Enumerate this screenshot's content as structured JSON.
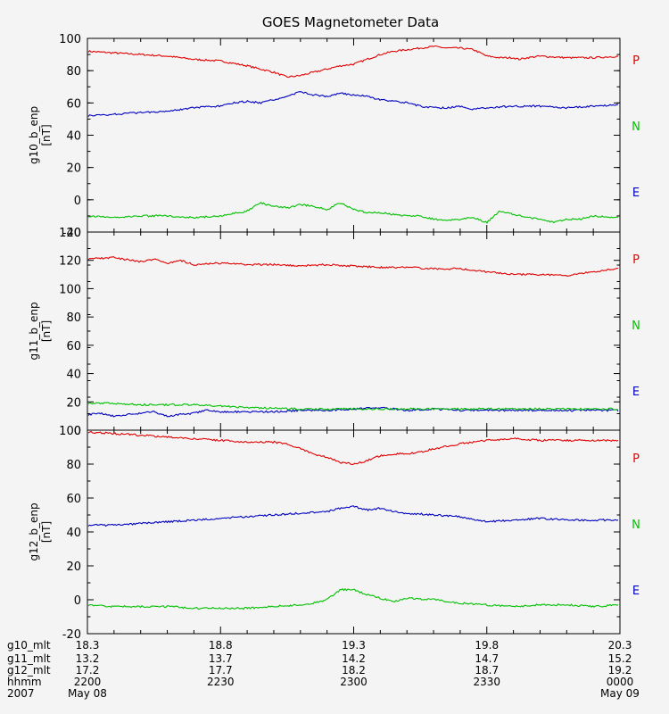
{
  "chart_data": {
    "type": "line",
    "title": "GOES Magnetometer Data",
    "x_ticks": [
      0,
      0.5,
      1.0,
      1.5,
      2.0
    ],
    "colors": {
      "P": "#e00000",
      "N": "#00c000",
      "E": "#0000c0"
    },
    "legend": [
      {
        "key": "P",
        "label": "P",
        "color": "#e00000"
      },
      {
        "key": "N",
        "label": "N",
        "color": "#00c000"
      },
      {
        "key": "E",
        "label": "E",
        "color": "#0000c0"
      }
    ],
    "panels": [
      {
        "ylabel": "g10_b_enp",
        "yunit": "[nT]",
        "ylim": [
          -20,
          100
        ],
        "yticks": [
          -20,
          0,
          20,
          40,
          60,
          80,
          100
        ],
        "series": [
          {
            "name": "P",
            "color": "#e00000",
            "x": [
              0,
              0.1,
              0.2,
              0.3,
              0.4,
              0.5,
              0.6,
              0.7,
              0.75,
              0.8,
              0.85,
              0.9,
              0.95,
              1.0,
              1.05,
              1.1,
              1.15,
              1.2,
              1.25,
              1.3,
              1.35,
              1.4,
              1.45,
              1.5,
              1.55,
              1.6,
              1.62,
              1.65,
              1.7,
              1.8,
              1.9,
              2.0
            ],
            "values": [
              92,
              91,
              90,
              89,
              87,
              86,
              83,
              79,
              76,
              77,
              79,
              81,
              83,
              84,
              87,
              90,
              92,
              93,
              94,
              95,
              94,
              94,
              93,
              89,
              88,
              88,
              87,
              88,
              89,
              88,
              88,
              89
            ]
          },
          {
            "name": "E",
            "color": "#0000c0",
            "x": [
              0,
              0.1,
              0.2,
              0.3,
              0.4,
              0.5,
              0.55,
              0.6,
              0.65,
              0.7,
              0.75,
              0.8,
              0.85,
              0.9,
              0.95,
              1.0,
              1.05,
              1.1,
              1.15,
              1.2,
              1.25,
              1.3,
              1.35,
              1.4,
              1.45,
              1.5,
              1.6,
              1.7,
              1.8,
              1.9,
              2.0
            ],
            "values": [
              52,
              53,
              54,
              55,
              57,
              58,
              60,
              61,
              60,
              62,
              64,
              67,
              65,
              64,
              66,
              65,
              64,
              62,
              61,
              60,
              58,
              57,
              57,
              58,
              56,
              57,
              58,
              58,
              57,
              58,
              59
            ]
          },
          {
            "name": "N",
            "color": "#00c000",
            "x": [
              0,
              0.1,
              0.2,
              0.3,
              0.4,
              0.5,
              0.6,
              0.65,
              0.7,
              0.75,
              0.8,
              0.85,
              0.9,
              0.95,
              1.0,
              1.05,
              1.1,
              1.15,
              1.2,
              1.25,
              1.3,
              1.35,
              1.4,
              1.45,
              1.5,
              1.55,
              1.6,
              1.65,
              1.7,
              1.75,
              1.8,
              1.85,
              1.9,
              2.0
            ],
            "values": [
              -10,
              -11,
              -10,
              -10,
              -11,
              -10,
              -7,
              -2,
              -4,
              -5,
              -3,
              -4,
              -6,
              -2,
              -6,
              -8,
              -8,
              -9,
              -10,
              -10,
              -12,
              -13,
              -12,
              -11,
              -14,
              -7,
              -9,
              -11,
              -12,
              -14,
              -12,
              -12,
              -10,
              -11
            ]
          }
        ]
      },
      {
        "ylabel": "g11_b_enp",
        "yunit": "[nT]",
        "ylim": [
          0,
          140
        ],
        "yticks": [
          0,
          20,
          40,
          60,
          80,
          100,
          120,
          140
        ],
        "series": [
          {
            "name": "P",
            "color": "#e00000",
            "x": [
              0,
              0.1,
              0.2,
              0.25,
              0.3,
              0.35,
              0.4,
              0.5,
              0.6,
              0.7,
              0.8,
              0.9,
              1.0,
              1.1,
              1.2,
              1.3,
              1.4,
              1.5,
              1.6,
              1.7,
              1.8,
              1.9,
              2.0
            ],
            "values": [
              121,
              122,
              119,
              121,
              118,
              120,
              117,
              118,
              117,
              117,
              116,
              117,
              116,
              115,
              115,
              114,
              114,
              112,
              110,
              110,
              109,
              112,
              114
            ]
          },
          {
            "name": "E",
            "color": "#0000c0",
            "x": [
              0,
              0.05,
              0.1,
              0.15,
              0.2,
              0.25,
              0.3,
              0.35,
              0.4,
              0.45,
              0.5,
              0.6,
              0.7,
              0.8,
              0.9,
              1.0,
              1.1,
              1.2,
              1.3,
              1.4,
              1.5,
              1.6,
              1.7,
              1.8,
              1.9,
              2.0
            ],
            "values": [
              11,
              12,
              10,
              11,
              12,
              13,
              10,
              11,
              12,
              14,
              13,
              13,
              13,
              14,
              14,
              15,
              16,
              14,
              15,
              14,
              14,
              14,
              14,
              14,
              14,
              14
            ]
          },
          {
            "name": "N",
            "color": "#00c000",
            "x": [
              0,
              0.1,
              0.2,
              0.3,
              0.4,
              0.5,
              0.6,
              0.8,
              1.0,
              1.2,
              1.4,
              1.6,
              1.8,
              2.0
            ],
            "values": [
              19,
              19,
              18,
              18,
              18,
              17,
              16,
              15,
              15,
              15,
              15,
              15,
              15,
              15
            ]
          }
        ]
      },
      {
        "ylabel": "g12_b_enp",
        "yunit": "[nT]",
        "ylim": [
          -20,
          100
        ],
        "yticks": [
          -20,
          0,
          20,
          40,
          60,
          80,
          100
        ],
        "series": [
          {
            "name": "P",
            "color": "#e00000",
            "x": [
              0,
              0.1,
              0.2,
              0.3,
              0.4,
              0.5,
              0.6,
              0.7,
              0.75,
              0.8,
              0.85,
              0.9,
              0.95,
              1.0,
              1.05,
              1.1,
              1.15,
              1.2,
              1.25,
              1.3,
              1.4,
              1.5,
              1.6,
              1.7,
              1.8,
              1.9,
              2.0
            ],
            "values": [
              99,
              98,
              97,
              96,
              95,
              94,
              93,
              93,
              92,
              89,
              86,
              84,
              81,
              80,
              82,
              85,
              86,
              86,
              87,
              89,
              92,
              94,
              95,
              94,
              94,
              94,
              94
            ]
          },
          {
            "name": "E",
            "color": "#0000c0",
            "x": [
              0,
              0.1,
              0.2,
              0.3,
              0.4,
              0.5,
              0.6,
              0.7,
              0.8,
              0.9,
              0.95,
              1.0,
              1.05,
              1.1,
              1.15,
              1.2,
              1.3,
              1.4,
              1.5,
              1.6,
              1.7,
              1.8,
              1.9,
              2.0
            ],
            "values": [
              44,
              44,
              45,
              46,
              47,
              48,
              49,
              50,
              51,
              52,
              54,
              55,
              53,
              54,
              52,
              51,
              50,
              49,
              46,
              47,
              48,
              47,
              47,
              47
            ]
          },
          {
            "name": "N",
            "color": "#00c000",
            "x": [
              0,
              0.1,
              0.2,
              0.3,
              0.4,
              0.5,
              0.6,
              0.7,
              0.8,
              0.85,
              0.9,
              0.95,
              1.0,
              1.05,
              1.1,
              1.15,
              1.2,
              1.3,
              1.4,
              1.5,
              1.6,
              1.7,
              1.8,
              1.9,
              2.0
            ],
            "values": [
              -3,
              -4,
              -4,
              -4,
              -5,
              -5,
              -5,
              -4,
              -3,
              -2,
              0,
              6,
              6,
              3,
              1,
              -1,
              1,
              0,
              -2,
              -3,
              -4,
              -3,
              -3,
              -4,
              -3
            ]
          }
        ]
      }
    ],
    "footer": {
      "labels": [
        "g10_mlt",
        "g11_mlt",
        "g12_mlt",
        "hhmm",
        "2007"
      ],
      "columns": [
        [
          "18.3",
          "13.2",
          "17.2",
          "2200",
          "May 08"
        ],
        [
          "18.8",
          "13.7",
          "17.7",
          "2230",
          ""
        ],
        [
          "19.3",
          "14.2",
          "18.2",
          "2300",
          ""
        ],
        [
          "19.8",
          "14.7",
          "18.7",
          "2330",
          ""
        ],
        [
          "20.3",
          "15.2",
          "19.2",
          "0000",
          "May 09"
        ]
      ]
    }
  }
}
